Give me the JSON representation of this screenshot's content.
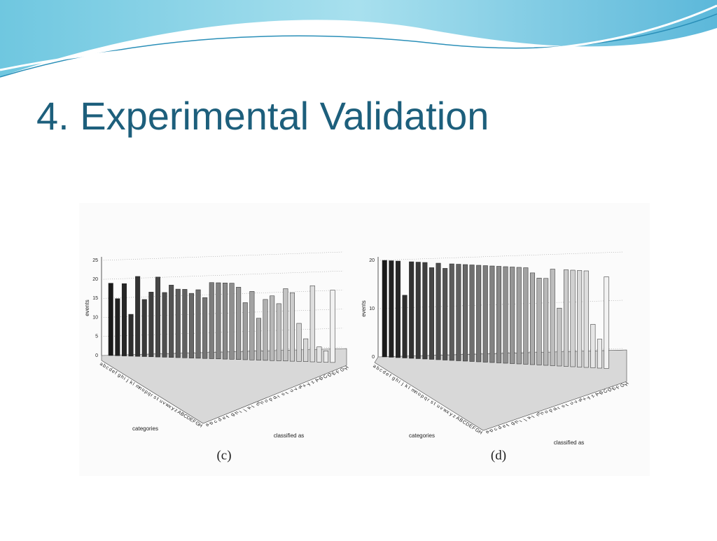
{
  "title": "4. Experimental Validation",
  "chart_data": [
    {
      "type": "bar3d",
      "caption": "(c)",
      "xlabel": "classified as",
      "ylabel": "categories",
      "zlabel": "events",
      "categories": [
        "a",
        "b",
        "c",
        "d",
        "e",
        "f",
        "g",
        "h",
        "i",
        "j",
        "k",
        "l",
        "m",
        "n",
        "o",
        "p",
        "q",
        "r",
        "s",
        "t",
        "u",
        "v",
        "w",
        "x",
        "y",
        "z",
        "A",
        "B",
        "C",
        "D",
        "E",
        "F",
        "G",
        "H"
      ],
      "values": [
        19,
        15,
        19,
        11,
        21,
        15,
        17,
        21,
        17,
        19,
        18,
        18,
        17,
        18,
        16,
        20,
        20,
        20,
        20,
        19,
        15,
        18,
        11,
        16,
        17,
        15,
        19,
        18,
        10,
        6,
        20,
        4,
        3,
        19
      ],
      "zlim": [
        0,
        25
      ],
      "zticks": [
        0,
        5,
        10,
        15,
        20,
        25
      ],
      "grid": true
    },
    {
      "type": "bar3d",
      "caption": "(d)",
      "xlabel": "classified as",
      "ylabel": "categories",
      "zlabel": "events",
      "categories": [
        "a",
        "b",
        "c",
        "d",
        "e",
        "f",
        "g",
        "h",
        "i",
        "j",
        "k",
        "l",
        "m",
        "n",
        "o",
        "p",
        "q",
        "r",
        "s",
        "t",
        "u",
        "v",
        "w",
        "x",
        "y",
        "z",
        "A",
        "B",
        "C",
        "D",
        "E",
        "F",
        "G",
        "H"
      ],
      "values": [
        20,
        20,
        20,
        13,
        20,
        20,
        20,
        19,
        20,
        19,
        20,
        20,
        20,
        20,
        20,
        20,
        20,
        20,
        20,
        20,
        20,
        20,
        19,
        18,
        18,
        20,
        12,
        20,
        20,
        20,
        20,
        9,
        6,
        19
      ],
      "zlim": [
        0,
        20
      ],
      "zticks": [
        0,
        10,
        20
      ],
      "grid": true
    }
  ]
}
